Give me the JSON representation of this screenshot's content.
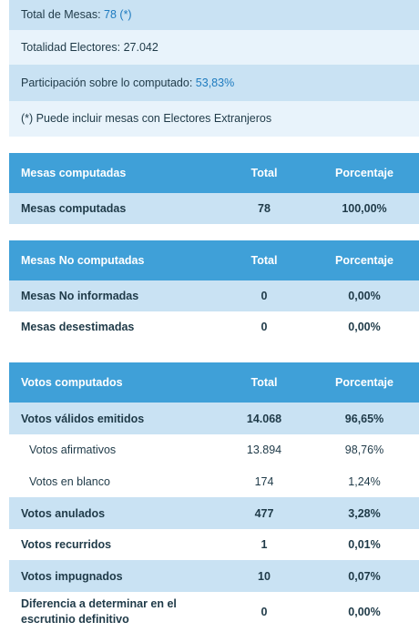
{
  "summary": {
    "total_mesas_label": "Total de Mesas:",
    "total_mesas_value": "78 (*)",
    "electores_label": "Totalidad Electores:",
    "electores_value": "27.042",
    "participacion_label": "Participación sobre lo computado:",
    "participacion_value": "53,83%",
    "footnote": "(*) Puede incluir mesas con Electores Extranjeros"
  },
  "tables": {
    "computadas": {
      "headers": [
        "Mesas computadas",
        "Total",
        "Porcentaje"
      ],
      "rows": [
        {
          "label": "Mesas computadas",
          "total": "78",
          "pct": "100,00%"
        }
      ]
    },
    "no_computadas": {
      "headers": [
        "Mesas No computadas",
        "Total",
        "Porcentaje"
      ],
      "rows": [
        {
          "label": "Mesas No informadas",
          "total": "0",
          "pct": "0,00%"
        },
        {
          "label": "Mesas desestimadas",
          "total": "0",
          "pct": "0,00%"
        }
      ]
    },
    "votos": {
      "headers": [
        "Votos computados",
        "Total",
        "Porcentaje"
      ],
      "rows": [
        {
          "label": "Votos válidos emitidos",
          "total": "14.068",
          "pct": "96,65%"
        },
        {
          "label": "Votos afirmativos",
          "total": "13.894",
          "pct": "98,76%"
        },
        {
          "label": "Votos en blanco",
          "total": "174",
          "pct": "1,24%"
        },
        {
          "label": "Votos anulados",
          "total": "477",
          "pct": "3,28%"
        },
        {
          "label": "Votos recurridos",
          "total": "1",
          "pct": "0,01%"
        },
        {
          "label": "Votos impugnados",
          "total": "10",
          "pct": "0,07%"
        },
        {
          "label": "Diferencia a determinar en el escrutinio definitivo",
          "total": "0",
          "pct": "0,00%"
        }
      ]
    }
  },
  "colors": {
    "header_blue": "#3fa0d8",
    "row_light_blue": "#c9e2f3",
    "row_pale_blue": "#e8f3fb",
    "accent_text": "#1e7bbf"
  }
}
